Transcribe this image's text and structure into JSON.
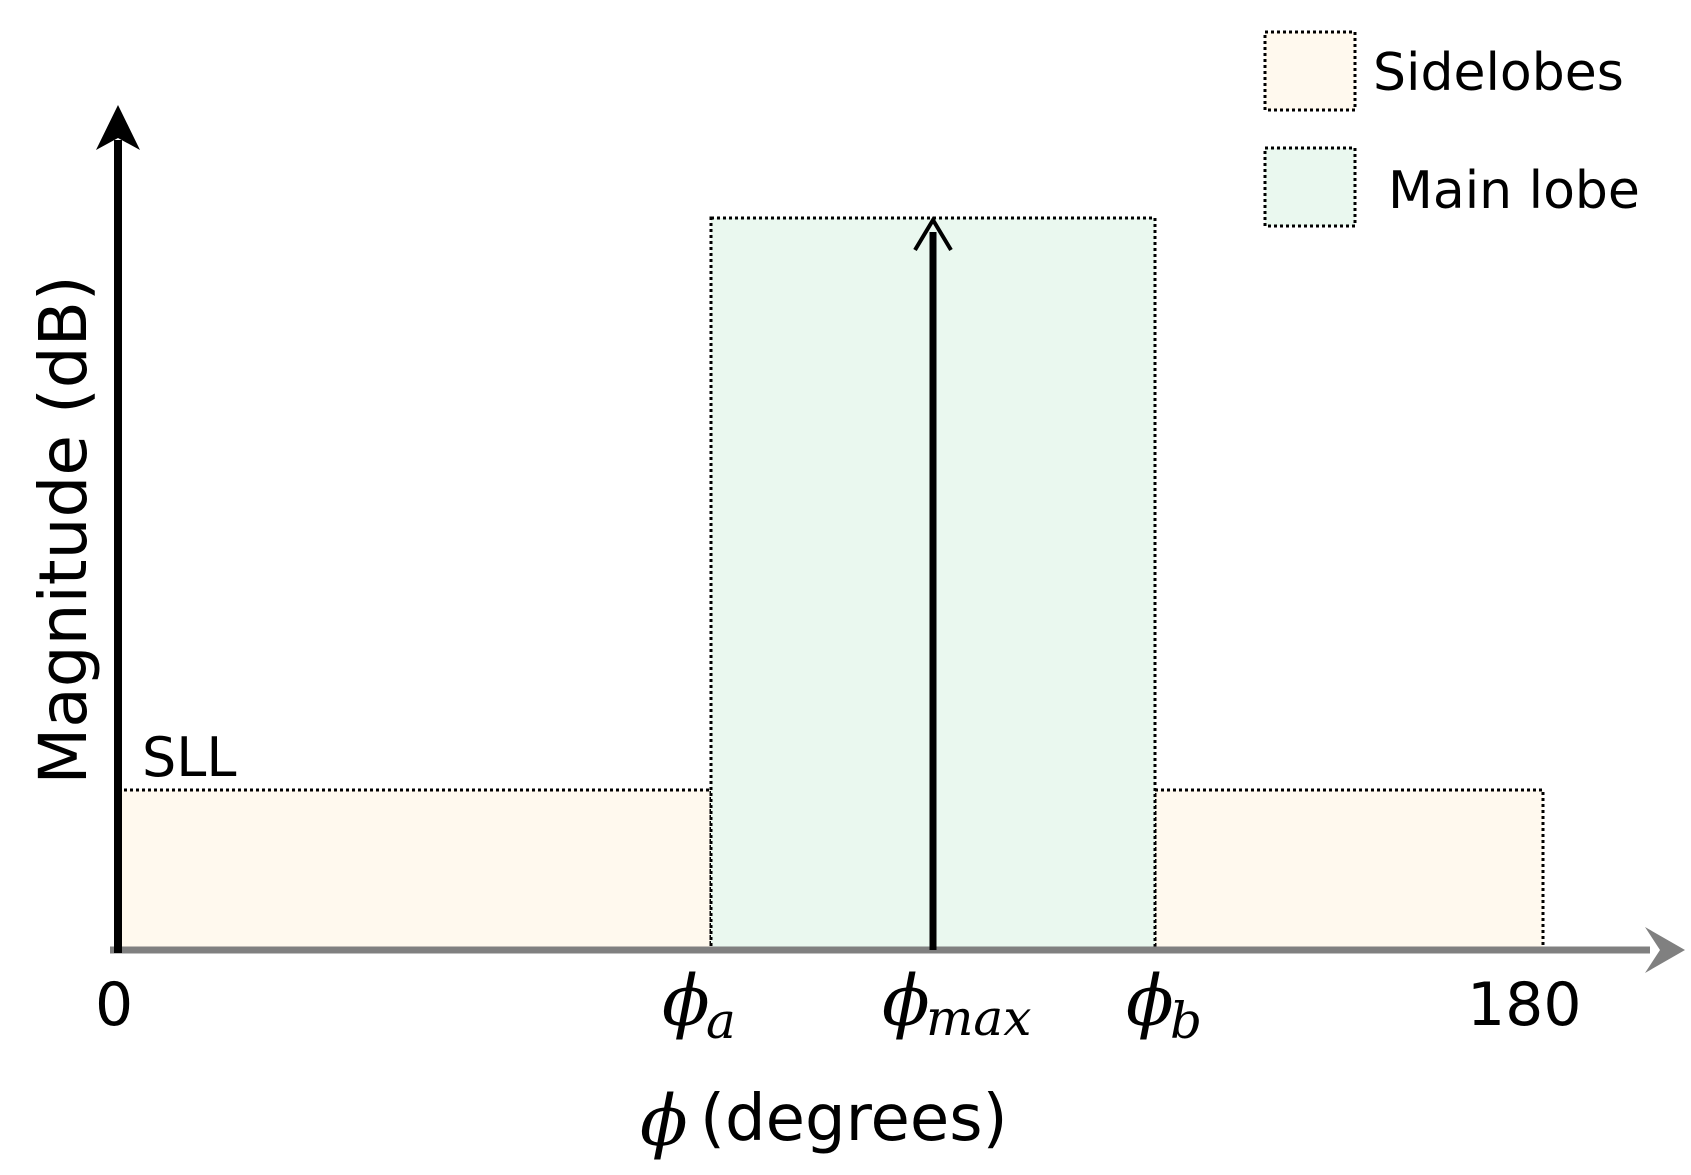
{
  "axes": {
    "y_label": "Magnitude (dB)",
    "x_label_symbol": "ϕ",
    "x_label_unit": "(degrees)"
  },
  "ticks": {
    "zero": "0",
    "phi": "ϕ",
    "a_sub": "a",
    "max_sub": "max",
    "b_sub": "b",
    "end": "180"
  },
  "sll_label": "SLL",
  "legend": {
    "sidelobes": "Sidelobes",
    "main_lobe": "Main lobe"
  },
  "colors": {
    "sidelobe_fill": "#fff9ee",
    "mainlobe_fill": "#eaf8ef",
    "axis_y": "#000000",
    "axis_x": "#808080"
  }
}
